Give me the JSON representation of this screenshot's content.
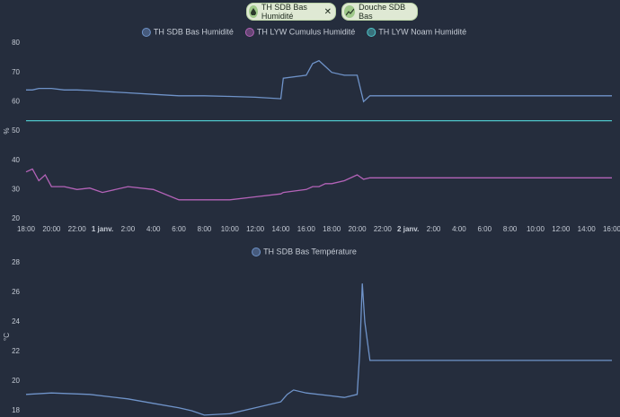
{
  "chips": [
    "TH SDB Bas Humidité",
    "Douche SDB Bas"
  ],
  "chart_data": [
    {
      "type": "line",
      "ylabel": "%",
      "x": [
        0,
        0.5,
        1,
        1.5,
        2,
        3,
        4,
        5,
        6,
        8,
        10,
        12,
        14,
        16,
        18,
        20,
        20.2,
        22,
        22.5,
        23,
        23.5,
        24,
        25,
        26,
        26.5,
        27,
        46
      ],
      "series": [
        {
          "name": "TH SDB Bas Humidité",
          "color": "#6f93c9",
          "values": [
            64,
            64,
            64.5,
            64.5,
            64.5,
            64,
            64,
            63.8,
            63.5,
            63,
            62.5,
            62,
            62,
            61.8,
            61.5,
            61,
            68,
            69,
            73,
            74,
            72,
            70,
            69,
            69,
            60,
            62,
            62
          ]
        },
        {
          "name": "TH LYW Cumulus Humidité",
          "color": "#b463b8",
          "values": [
            36,
            37,
            33,
            35,
            31,
            31,
            30,
            30.5,
            29,
            31,
            30,
            26.5,
            26.5,
            26.5,
            27.5,
            28.5,
            29,
            30,
            31,
            31,
            32,
            32,
            33,
            35,
            33.5,
            34,
            34
          ]
        },
        {
          "name": "TH LYW Noam Humidité",
          "color": "#4fc5c9",
          "values": [
            53.5,
            53.5,
            53.5,
            53.5,
            53.5,
            53.5,
            53.5,
            53.5,
            53.5,
            53.5,
            53.5,
            53.5,
            53.5,
            53.5,
            53.5,
            53.5,
            53.5,
            53.5,
            53.5,
            53.5,
            53.5,
            53.5,
            53.5,
            53.5,
            53.5,
            53.5,
            53.5
          ]
        }
      ],
      "xlim": [
        0,
        46
      ],
      "xticks": [
        {
          "value": 0,
          "label": "18:00"
        },
        {
          "value": 2,
          "label": "20:00"
        },
        {
          "value": 4,
          "label": "22:00"
        },
        {
          "value": 6,
          "label": "1 janv."
        },
        {
          "value": 8,
          "label": "2:00"
        },
        {
          "value": 10,
          "label": "4:00"
        },
        {
          "value": 12,
          "label": "6:00"
        },
        {
          "value": 14,
          "label": "8:00"
        },
        {
          "value": 16,
          "label": "10:00"
        },
        {
          "value": 18,
          "label": "12:00"
        },
        {
          "value": 20,
          "label": "14:00"
        },
        {
          "value": 22,
          "label": "16:00"
        },
        {
          "value": 24,
          "label": "18:00"
        },
        {
          "value": 26,
          "label": "20:00"
        },
        {
          "value": 28,
          "label": "22:00"
        },
        {
          "value": 30,
          "label": "2 janv."
        },
        {
          "value": 32,
          "label": "2:00"
        },
        {
          "value": 34,
          "label": "4:00"
        },
        {
          "value": 36,
          "label": "6:00"
        },
        {
          "value": 38,
          "label": "8:00"
        },
        {
          "value": 40,
          "label": "10:00"
        },
        {
          "value": 42,
          "label": "12:00"
        },
        {
          "value": 44,
          "label": "14:00"
        },
        {
          "value": 46,
          "label": "16:00"
        }
      ],
      "ylim": [
        20,
        80
      ],
      "yticks": [
        20,
        30,
        40,
        50,
        60,
        70,
        80
      ]
    },
    {
      "type": "line",
      "ylabel": "°C",
      "x": [
        0,
        2,
        5,
        8,
        10,
        12,
        13,
        14,
        16,
        18,
        20,
        20.5,
        21,
        22,
        24,
        25,
        26,
        26.2,
        26.4,
        26.6,
        27,
        46
      ],
      "series": [
        {
          "name": "TH SDB Bas Température",
          "color": "#6f93c9",
          "values": [
            19.1,
            19.2,
            19.1,
            18.8,
            18.5,
            18.2,
            18,
            17.7,
            17.8,
            18.2,
            18.6,
            19.1,
            19.4,
            19.2,
            19,
            18.9,
            19.1,
            22,
            26.6,
            24,
            21.4,
            21.4
          ]
        }
      ],
      "xlim": [
        0,
        46
      ],
      "ylim": [
        18,
        28
      ],
      "yticks": [
        18,
        20,
        22,
        24,
        26,
        28
      ]
    }
  ]
}
